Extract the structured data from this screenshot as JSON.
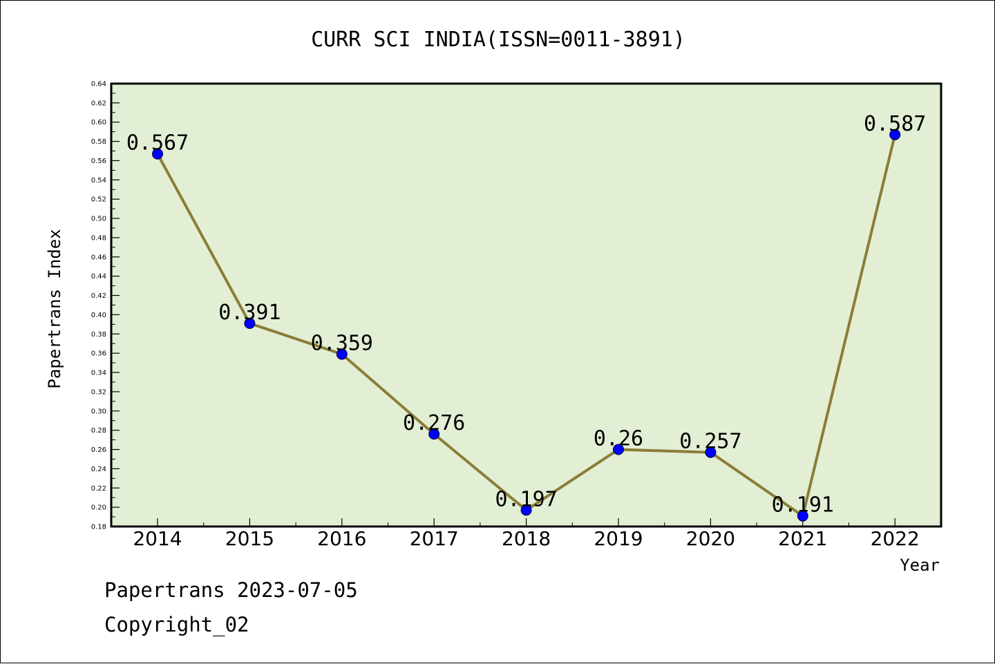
{
  "chart_data": {
    "type": "line",
    "title": "CURR SCI INDIA(ISSN=0011-3891)",
    "xlabel": "Year",
    "ylabel": "Papertrans Index",
    "categories": [
      "2014",
      "2015",
      "2016",
      "2017",
      "2018",
      "2019",
      "2020",
      "2021",
      "2022"
    ],
    "values": [
      0.567,
      0.391,
      0.359,
      0.276,
      0.197,
      0.26,
      0.257,
      0.191,
      0.587
    ],
    "data_labels": [
      "0.567",
      "0.391",
      "0.359",
      "0.276",
      "0.197",
      "0.26",
      "0.257",
      "0.191",
      "0.587"
    ],
    "ylim": [
      0.18,
      0.64
    ],
    "yticks": [
      "0.18",
      "0.20",
      "0.22",
      "0.24",
      "0.26",
      "0.28",
      "0.30",
      "0.32",
      "0.34",
      "0.36",
      "0.38",
      "0.40",
      "0.42",
      "0.44",
      "0.46",
      "0.48",
      "0.50",
      "0.52",
      "0.54",
      "0.56",
      "0.58",
      "0.60",
      "0.62",
      "0.64"
    ],
    "grid": false,
    "colors": {
      "plot_background": "#e2efd5",
      "line": "#8b7d38",
      "marker": "#0000ff"
    }
  },
  "footer": {
    "line1": "Papertrans 2023-07-05",
    "line2": "Copyright_02"
  }
}
